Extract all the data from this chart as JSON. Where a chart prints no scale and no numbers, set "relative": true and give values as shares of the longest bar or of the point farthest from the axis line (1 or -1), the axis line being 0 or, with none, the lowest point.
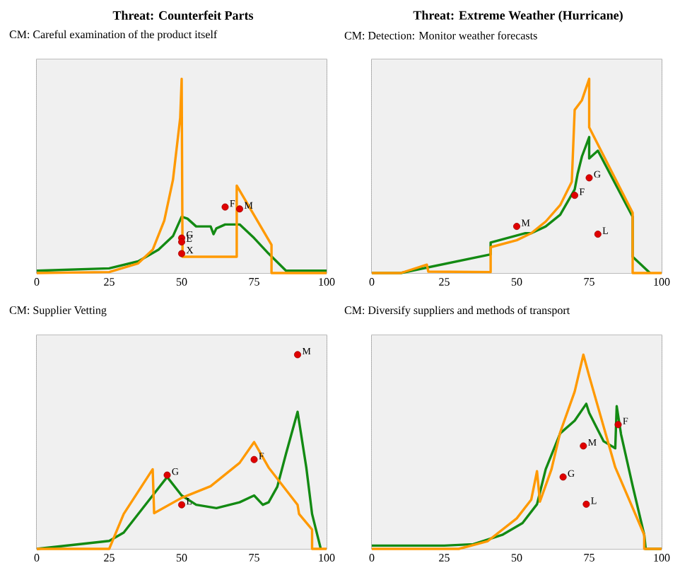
{
  "chart_data": [
    {
      "type": "line",
      "title": "Threat: Counterfeit Parts",
      "subtitle": "CM: Careful examination of the product itself",
      "relative": true,
      "xlim": [
        0,
        100
      ],
      "xticks": [
        0,
        25,
        50,
        75,
        100
      ],
      "grid": "x",
      "line_style": "solid",
      "series": [
        {
          "color": "#138a13",
          "x": [
            0,
            25,
            35,
            42,
            47,
            50,
            52,
            55,
            60,
            61,
            62,
            65,
            70,
            75,
            80,
            86,
            100
          ],
          "values": [
            0.012,
            0.024,
            0.06,
            0.12,
            0.19,
            0.29,
            0.28,
            0.24,
            0.24,
            0.2,
            0.23,
            0.25,
            0.25,
            0.18,
            0.1,
            0.012,
            0.012
          ]
        },
        {
          "color": "#ff9900",
          "x": [
            0,
            25,
            35,
            40,
            44,
            47,
            49.5,
            50,
            50.3,
            69,
            69,
            81,
            81,
            100
          ],
          "values": [
            0,
            0.005,
            0.05,
            0.12,
            0.27,
            0.48,
            0.8,
            1.0,
            0.084,
            0.084,
            0.45,
            0.145,
            0,
            0
          ]
        },
        {
          "type": "scatter",
          "name": "F",
          "color": "#e00000",
          "x": [
            65
          ],
          "values": [
            0.34
          ]
        },
        {
          "type": "scatter",
          "name": "M",
          "color": "#e00000",
          "x": [
            70
          ],
          "values": [
            0.33
          ]
        },
        {
          "type": "scatter",
          "name": "G",
          "color": "#e00000",
          "x": [
            50
          ],
          "values": [
            0.18
          ]
        },
        {
          "type": "scatter",
          "name": "E",
          "color": "#e00000",
          "x": [
            50
          ],
          "values": [
            0.16
          ]
        },
        {
          "type": "scatter",
          "name": "X",
          "color": "#e00000",
          "x": [
            50
          ],
          "values": [
            0.1
          ]
        }
      ]
    },
    {
      "type": "line",
      "title": "Threat: Extreme Weather (Hurricane)",
      "subtitle": "CM: Detection: Monitor weather forecasts",
      "relative": true,
      "xlim": [
        0,
        100
      ],
      "xticks": [
        0,
        25,
        50,
        75,
        100
      ],
      "grid": "x",
      "line_style": "solid",
      "series": [
        {
          "color": "#138a13",
          "x": [
            0,
            10,
            41,
            41,
            53,
            55,
            60,
            65,
            70,
            71,
            72.5,
            75,
            75,
            78,
            90,
            90,
            96
          ],
          "values": [
            0,
            0,
            0.096,
            0.157,
            0.205,
            0.205,
            0.24,
            0.3,
            0.43,
            0.51,
            0.6,
            0.7,
            0.59,
            0.63,
            0.29,
            0.084,
            0
          ]
        },
        {
          "color": "#ff9900",
          "x": [
            0,
            10,
            19,
            19.5,
            41,
            41,
            50,
            55,
            60,
            65,
            69,
            70,
            72.5,
            75,
            75,
            90,
            90,
            100
          ],
          "values": [
            0,
            0,
            0.043,
            0.007,
            0.005,
            0.133,
            0.169,
            0.205,
            0.265,
            0.35,
            0.47,
            0.84,
            0.89,
            1.0,
            0.75,
            0.31,
            0,
            0
          ]
        },
        {
          "type": "scatter",
          "name": "M",
          "color": "#e00000",
          "x": [
            50
          ],
          "values": [
            0.24
          ]
        },
        {
          "type": "scatter",
          "name": "F",
          "color": "#e00000",
          "x": [
            70
          ],
          "values": [
            0.4
          ]
        },
        {
          "type": "scatter",
          "name": "G",
          "color": "#e00000",
          "x": [
            75
          ],
          "values": [
            0.49
          ]
        },
        {
          "type": "scatter",
          "name": "L",
          "color": "#e00000",
          "x": [
            78
          ],
          "values": [
            0.2
          ]
        }
      ]
    },
    {
      "type": "line",
      "title": "CM: Supplier Vetting",
      "relative": true,
      "xlim": [
        0,
        100
      ],
      "xticks": [
        0,
        25,
        50,
        75,
        100
      ],
      "grid": "x",
      "line_style": "solid",
      "series": [
        {
          "color": "#138a13",
          "x": [
            0,
            25,
            30,
            40,
            45,
            50,
            55,
            62,
            70,
            75,
            78,
            80,
            83,
            86,
            90,
            93,
            95,
            98
          ],
          "values": [
            0,
            0.041,
            0.084,
            0.275,
            0.37,
            0.275,
            0.227,
            0.21,
            0.24,
            0.275,
            0.227,
            0.24,
            0.32,
            0.49,
            0.706,
            0.42,
            0.18,
            0
          ]
        },
        {
          "color": "#ff9900",
          "x": [
            0,
            25,
            30,
            40,
            40.5,
            50,
            60,
            70,
            75,
            80,
            90,
            90.5,
            95,
            95,
            100
          ],
          "values": [
            0,
            0,
            0.18,
            0.41,
            0.184,
            0.263,
            0.323,
            0.443,
            0.55,
            0.419,
            0.227,
            0.18,
            0.1,
            0,
            0
          ]
        },
        {
          "type": "scatter",
          "name": "G",
          "color": "#e00000",
          "x": [
            45
          ],
          "values": [
            0.38
          ]
        },
        {
          "type": "scatter",
          "name": "L",
          "color": "#e00000",
          "x": [
            50
          ],
          "values": [
            0.227
          ]
        },
        {
          "type": "scatter",
          "name": "F",
          "color": "#e00000",
          "x": [
            75
          ],
          "values": [
            0.46
          ]
        },
        {
          "type": "scatter",
          "name": "M",
          "color": "#e00000",
          "x": [
            90
          ],
          "values": [
            1.0
          ]
        }
      ]
    },
    {
      "type": "line",
      "title": "CM: Diversify suppliers and methods of transport",
      "relative": true,
      "xlim": [
        0,
        100
      ],
      "xticks": [
        0,
        25,
        50,
        75,
        100
      ],
      "grid": "x",
      "line_style": "solid",
      "series": [
        {
          "color": "#138a13",
          "x": [
            0,
            25,
            35,
            45,
            52,
            57,
            60,
            65,
            70,
            74,
            75,
            80,
            84,
            84.5,
            86,
            90,
            94,
            94.5,
            100
          ],
          "values": [
            0.017,
            0.017,
            0.024,
            0.072,
            0.133,
            0.23,
            0.41,
            0.595,
            0.66,
            0.747,
            0.7,
            0.554,
            0.518,
            0.735,
            0.59,
            0.325,
            0.072,
            0,
            0
          ]
        },
        {
          "color": "#ff9900",
          "x": [
            0,
            30,
            40,
            50,
            55,
            57,
            58,
            62,
            65,
            70,
            73,
            75,
            84,
            94,
            94,
            100
          ],
          "values": [
            0,
            0,
            0.04,
            0.157,
            0.253,
            0.4,
            0.243,
            0.41,
            0.6,
            0.81,
            1.0,
            0.89,
            0.42,
            0.072,
            0,
            0
          ]
        },
        {
          "type": "scatter",
          "name": "G",
          "color": "#e00000",
          "x": [
            66
          ],
          "values": [
            0.37
          ]
        },
        {
          "type": "scatter",
          "name": "L",
          "color": "#e00000",
          "x": [
            74
          ],
          "values": [
            0.23
          ]
        },
        {
          "type": "scatter",
          "name": "M",
          "color": "#e00000",
          "x": [
            73
          ],
          "values": [
            0.53
          ]
        },
        {
          "type": "scatter",
          "name": "F",
          "color": "#e00000",
          "x": [
            85
          ],
          "values": [
            0.64
          ]
        }
      ]
    }
  ]
}
